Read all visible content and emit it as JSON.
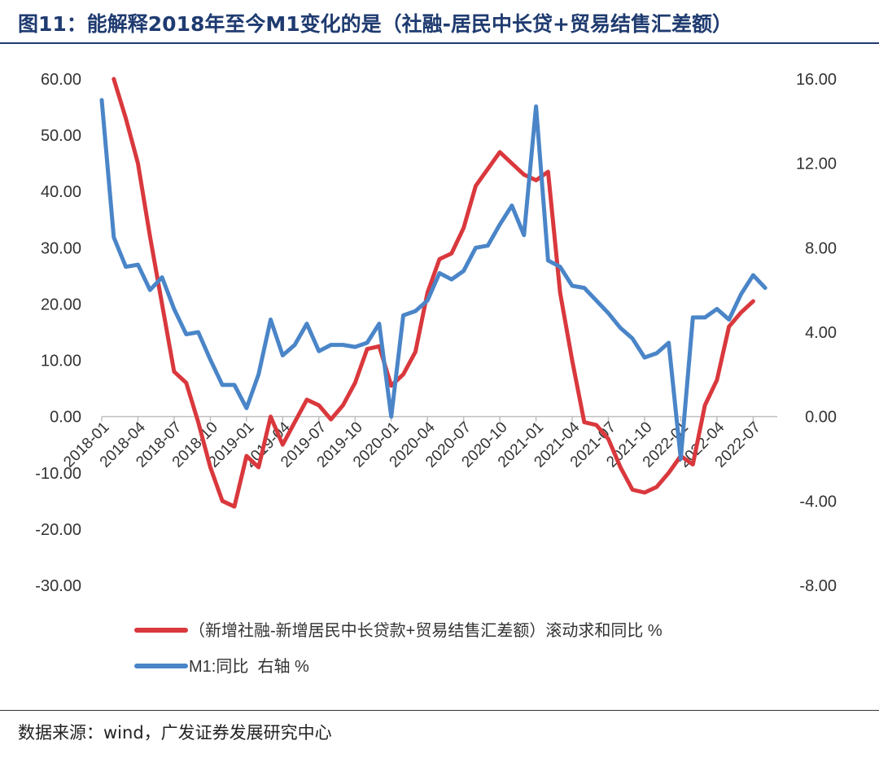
{
  "header": {
    "title": "图11：能解释2018年至今M1变化的是（社融-居民中长贷+贸易结售汇差额）"
  },
  "footer": {
    "source": "数据来源：wind，广发证券发展研究中心"
  },
  "chart_data": {
    "type": "line",
    "title": "图11：能解释2018年至今M1变化的是（社融-居民中长贷+贸易结售汇差额）",
    "x_tick_labels": [
      "2018-01",
      "2018-04",
      "2018-07",
      "2018-10",
      "2019-01",
      "2019-04",
      "2019-07",
      "2019-10",
      "2020-01",
      "2020-04",
      "2020-07",
      "2020-10",
      "2021-01",
      "2021-04",
      "2021-07",
      "2021-10",
      "2022-01",
      "2022-04",
      "2022-07"
    ],
    "x_start": "2018-01",
    "y_left": {
      "min": -30,
      "max": 60,
      "ticks": [
        "60.00",
        "50.00",
        "40.00",
        "30.00",
        "20.00",
        "10.00",
        "0.00",
        "-10.00",
        "-20.00",
        "-30.00"
      ]
    },
    "y_right": {
      "min": -8,
      "max": 16,
      "ticks": [
        "16.00",
        "12.00",
        "8.00",
        "4.00",
        "0.00",
        "-4.00",
        "-8.00"
      ]
    },
    "grid": false,
    "legend_position": "bottom",
    "series": [
      {
        "name": "（新增社融-新增居民中长贷款+贸易结售汇差额）滚动求和同比 %",
        "axis": "left",
        "color": "#d9383d",
        "start": "2018-02",
        "values": [
          62,
          53,
          45,
          32,
          20,
          8,
          6,
          -1,
          -9,
          -15,
          -16,
          -7,
          -9,
          0,
          -5,
          -1,
          3,
          2,
          -0.5,
          2,
          6,
          12,
          12.5,
          5.5,
          7.5,
          11.5,
          22,
          28,
          29,
          33.5,
          41,
          44,
          47,
          45,
          43,
          42,
          43.5,
          22,
          10,
          -1,
          -1.5,
          -4,
          -9,
          -13,
          -13.5,
          -12.5,
          -10,
          -7,
          -8.5,
          2,
          6.5,
          16,
          18.5,
          20.5
        ]
      },
      {
        "name": "M1:同比  右轴 %",
        "axis": "right",
        "color": "#4a85c8",
        "start": "2018-01",
        "values": [
          15.0,
          8.5,
          7.1,
          7.2,
          6.0,
          6.6,
          5.1,
          3.9,
          4.0,
          2.7,
          1.5,
          1.5,
          0.4,
          2.0,
          4.6,
          2.9,
          3.4,
          4.4,
          3.1,
          3.4,
          3.4,
          3.3,
          3.5,
          4.4,
          0.0,
          4.8,
          5.0,
          5.5,
          6.8,
          6.5,
          6.9,
          8.0,
          8.1,
          9.1,
          10.0,
          8.6,
          14.7,
          7.4,
          7.1,
          6.2,
          6.1,
          5.5,
          4.9,
          4.2,
          3.7,
          2.8,
          3.0,
          3.5,
          -2.0,
          4.7,
          4.7,
          5.1,
          4.6,
          5.8,
          6.7,
          6.1
        ]
      }
    ]
  }
}
